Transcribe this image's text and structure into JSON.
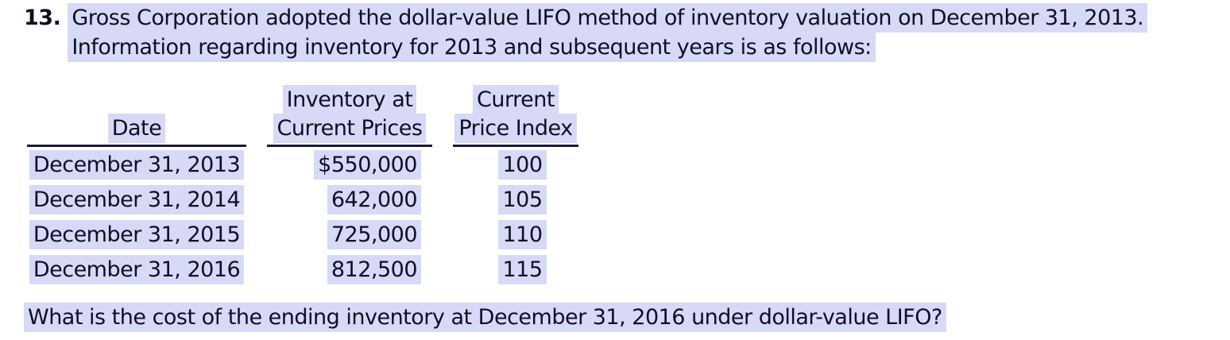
{
  "problem": {
    "number": "13.",
    "intro_line1": "Gross Corporation adopted the dollar-value LIFO method of inventory valuation on December 31, 2013.",
    "intro_line2": "Information regarding inventory for 2013 and subsequent years is as follows:",
    "question": "What is the cost of the ending inventory at December 31, 2016 under dollar-value LIFO?"
  },
  "table": {
    "headers": [
      {
        "lines": [
          "",
          "Date"
        ]
      },
      {
        "lines": [
          "Inventory at",
          "Current Prices"
        ]
      },
      {
        "lines": [
          "Current",
          "Price Index"
        ]
      }
    ],
    "rows": [
      [
        "December 31, 2013",
        "$550,000",
        "100"
      ],
      [
        "December 31, 2014",
        "642,000",
        "105"
      ],
      [
        "December 31, 2015",
        "725,000",
        "110"
      ],
      [
        "December 31, 2016",
        "812,500",
        "115"
      ]
    ]
  },
  "colors": {
    "highlight": "#d6daf7",
    "text": "#0f0f23",
    "rule": "#1b1b38"
  }
}
